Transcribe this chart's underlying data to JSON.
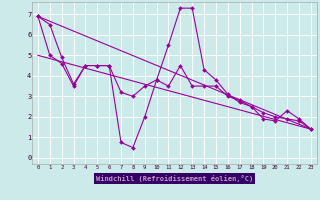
{
  "xlabel": "Windchill (Refroidissement éolien,°C)",
  "background_color": "#cceaea",
  "grid_color": "#ffffff",
  "line_color": "#990099",
  "xlabel_bg": "#330066",
  "xlabel_fg": "#cc99cc",
  "y_ticks": [
    0,
    1,
    2,
    3,
    4,
    5,
    6,
    7
  ],
  "xlim": [
    -0.5,
    23.5
  ],
  "ylim": [
    -0.3,
    7.6
  ],
  "series1_x": [
    0,
    1,
    2,
    3,
    4,
    5,
    6,
    7,
    8,
    9,
    10,
    11,
    12,
    13,
    14,
    15,
    16,
    17,
    18,
    19,
    20,
    21,
    22,
    23
  ],
  "series1_y": [
    6.9,
    6.5,
    4.9,
    3.6,
    4.5,
    4.5,
    4.5,
    0.75,
    0.5,
    2.0,
    3.8,
    5.5,
    7.3,
    7.3,
    4.3,
    3.8,
    3.1,
    2.7,
    2.5,
    1.9,
    1.8,
    2.3,
    1.9,
    1.4
  ],
  "series2_x": [
    0,
    1,
    2,
    3,
    4,
    5,
    6,
    7,
    8,
    9,
    10,
    11,
    12,
    13,
    14,
    15,
    16,
    17,
    18,
    19,
    20,
    21,
    22,
    23
  ],
  "series2_y": [
    6.9,
    5.0,
    4.6,
    3.5,
    4.5,
    4.5,
    4.5,
    3.2,
    3.0,
    3.5,
    3.8,
    3.5,
    4.5,
    3.5,
    3.5,
    3.5,
    3.0,
    2.8,
    2.5,
    2.2,
    2.0,
    1.9,
    1.8,
    1.4
  ],
  "series3_x": [
    0,
    23
  ],
  "series3_y": [
    6.9,
    1.4
  ],
  "series4_x": [
    0,
    23
  ],
  "series4_y": [
    5.0,
    1.4
  ]
}
